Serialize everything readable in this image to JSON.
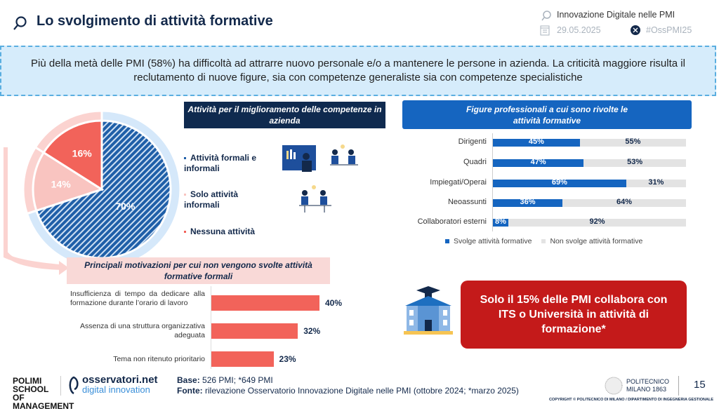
{
  "header": {
    "title": "Lo svolgimento di attività formative",
    "event": "Innovazione Digitale nelle PMI",
    "date": "29.05.2025",
    "hashtag": "#OssPMI25"
  },
  "banner": {
    "text": "Più della metà delle PMI (58%) ha difficoltà ad attrarre nuovo personale e/o a mantenere le persone in azienda. La criticità maggiore risulta il reclutamento di nuove figure, sia con competenze generaliste sia con competenze specialistiche"
  },
  "colors": {
    "navy": "#0f2a4f",
    "blue": "#1565c0",
    "red": "#f2635a",
    "pink": "#f9c4c0",
    "gray": "#e3e3e3",
    "darkred": "#c41a1a"
  },
  "chart_data": [
    {
      "type": "pie",
      "title": "Attività per il miglioramento delle competenze in azienda",
      "slices": [
        {
          "label": "Attività formali e informali",
          "value": 70,
          "display": "70%",
          "color": "#1f5fa8"
        },
        {
          "label": "Solo attività informali",
          "value": 14,
          "display": "14%",
          "color": "#f9c4c0"
        },
        {
          "label": "Nessuna attività",
          "value": 16,
          "display": "16%",
          "color": "#f2635a"
        }
      ]
    },
    {
      "type": "bar",
      "stacked": true,
      "orientation": "horizontal",
      "title": "Figure professionali a cui sono rivolte le attività formative",
      "categories": [
        "Dirigenti",
        "Quadri",
        "Impiegati/Operai",
        "Neoassunti",
        "Collaboratori esterni"
      ],
      "series": [
        {
          "name": "Svolge attività formative",
          "values": [
            45,
            47,
            69,
            36,
            8
          ],
          "color": "#1565c0"
        },
        {
          "name": "Non svolge attività formative",
          "values": [
            55,
            53,
            31,
            64,
            92
          ],
          "color": "#e3e3e3"
        }
      ],
      "legend": "bottom"
    },
    {
      "type": "bar",
      "orientation": "horizontal",
      "title": "Principali motivazioni per cui non vengono svolte attività formative formali",
      "categories": [
        "Insufficienza di tempo da dedicare alla formazione durante l’orario di lavoro",
        "Assenza di una struttura organizzativa adeguata",
        "Tema non ritenuto prioritario"
      ],
      "values": [
        40,
        32,
        23
      ],
      "labels": [
        "40%",
        "32%",
        "23%"
      ],
      "color": "#f2635a"
    }
  ],
  "callout": {
    "text": "Solo il 15% delle PMI collabora con ITS o Università in attività di formazione*"
  },
  "footer": {
    "base_label": "Base:",
    "base": "526 PMI; *649 PMI",
    "source_label": "Fonte:",
    "source": "rilevazione Osservatorio Innovazione Digitale nelle PMI (ottobre 2024; *marzo 2025)",
    "page": "15",
    "copyright": "COPYRIGHT © POLITECNICO DI MILANO / DIPARTIMENTO DI INGEGNERIA GESTIONALE",
    "logo1": "POLIMI SCHOOL OF MANAGEMENT",
    "logo2a": "osservatori.net",
    "logo2b": "digital innovation",
    "logo3": "POLITECNICO MILANO 1863"
  }
}
